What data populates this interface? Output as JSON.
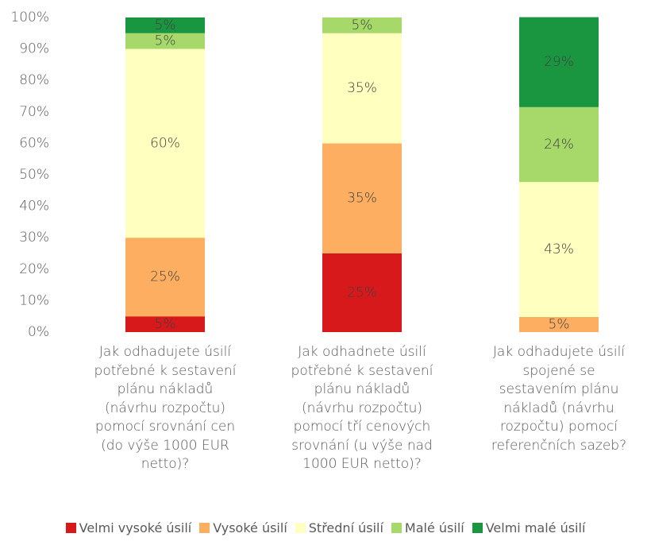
{
  "chart_data": {
    "type": "stacked_bar",
    "categories": [
      "Jak odhadujete úsilí potřebné k sestavení plánu nákladů (návrhu rozpočtu) pomocí srovnání cen (do výše 1000 EUR netto)?",
      "Jak odhadnete úsilí potřebné k sestavení plánu nákladů (návrhu rozpočtu) pomocí tří cenových srovnání (u výše nad 1000 EUR netto)?",
      "Jak odhadujete úsilí spojené se sestavením plánu nákladů (návrhu rozpočtu) pomocí referenčních sazeb?"
    ],
    "series": [
      {
        "name": "Velmi vysoké úsilí",
        "color": "#d7191c",
        "values": [
          5,
          25,
          0
        ],
        "value_labels": [
          "5%",
          "25%",
          null
        ]
      },
      {
        "name": "Vysoké úsilí",
        "color": "#fdae61",
        "values": [
          25,
          35,
          4.8
        ],
        "value_labels": [
          "25%",
          "35%",
          "5%"
        ]
      },
      {
        "name": "Střední úsilí",
        "color": "#ffffbf",
        "values": [
          60,
          35,
          42.9
        ],
        "value_labels": [
          "60%",
          "35%",
          "43%"
        ]
      },
      {
        "name": "Malé úsilí",
        "color": "#a6d96a",
        "values": [
          5,
          5,
          23.8
        ],
        "value_labels": [
          "5%",
          "5%",
          "24%"
        ]
      },
      {
        "name": "Velmi malé úsilí",
        "color": "#1a9641",
        "values": [
          5,
          0,
          28.6
        ],
        "value_labels": [
          "5%",
          null,
          "29%"
        ]
      }
    ],
    "ylim": [
      0,
      100
    ],
    "yticks": [
      {
        "value": 0,
        "label": "0%"
      },
      {
        "value": 10,
        "label": "10%"
      },
      {
        "value": 20,
        "label": "20%"
      },
      {
        "value": 30,
        "label": "30%"
      },
      {
        "value": 40,
        "label": "40%"
      },
      {
        "value": 50,
        "label": "50%"
      },
      {
        "value": 60,
        "label": "60%"
      },
      {
        "value": 70,
        "label": "70%"
      },
      {
        "value": 80,
        "label": "80%"
      },
      {
        "value": 90,
        "label": "90%"
      },
      {
        "value": 100,
        "label": "100%"
      }
    ],
    "grid": false,
    "legend": "bottom"
  }
}
